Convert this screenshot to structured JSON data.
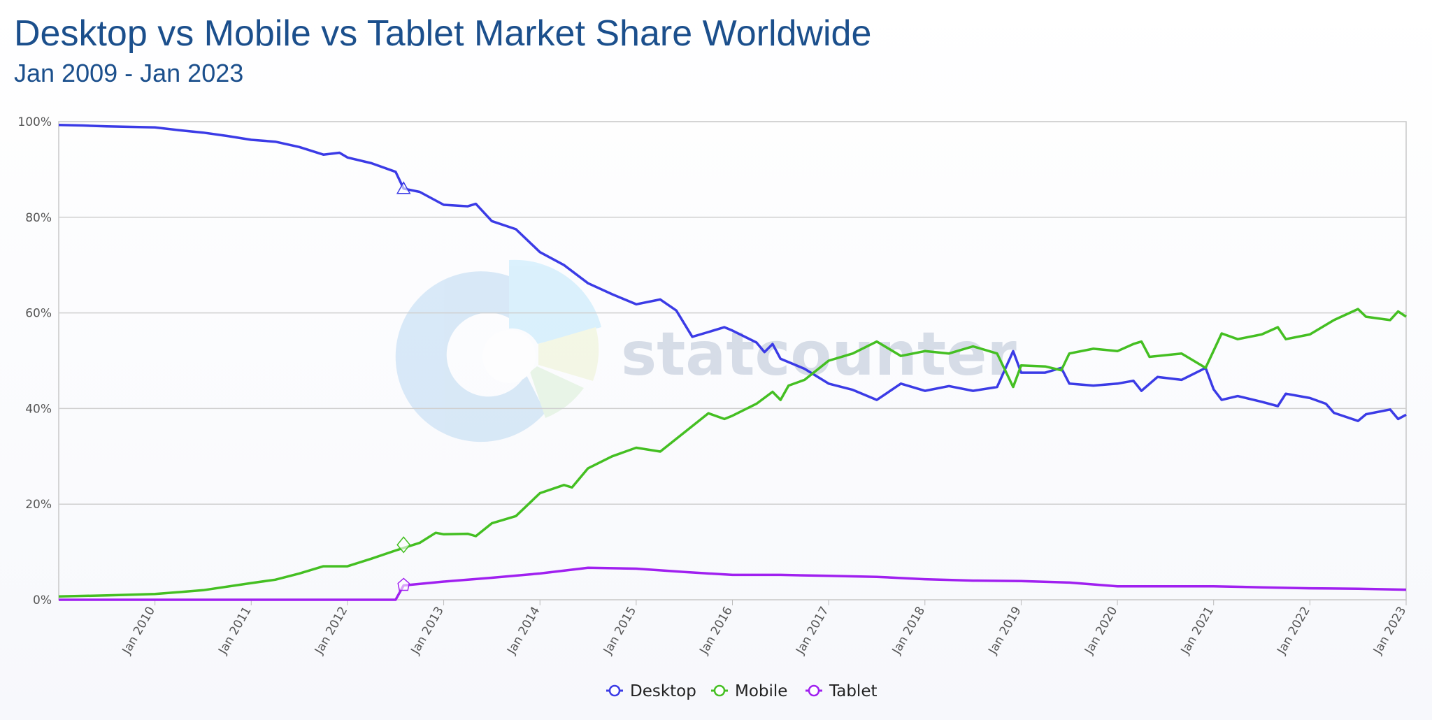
{
  "title": "Desktop vs Mobile vs Tablet Market Share Worldwide",
  "subtitle": "Jan 2009 - Jan 2023",
  "chart_data": {
    "type": "line",
    "title": "Desktop vs Mobile vs Tablet Market Share Worldwide",
    "subtitle": "Jan 2009 - Jan 2023",
    "xlabel": "",
    "ylabel": "",
    "xlim": [
      "2009-01",
      "2023-01"
    ],
    "ylim": [
      0,
      100
    ],
    "y_ticks": [
      "0%",
      "20%",
      "40%",
      "60%",
      "80%",
      "100%"
    ],
    "x_ticks": [
      "Jan 2010",
      "Jan 2011",
      "Jan 2012",
      "Jan 2013",
      "Jan 2014",
      "Jan 2015",
      "Jan 2016",
      "Jan 2017",
      "Jan 2018",
      "Jan 2019",
      "Jan 2020",
      "Jan 2021",
      "Jan 2022",
      "Jan 2023"
    ],
    "grid": true,
    "legend": "bottom-center",
    "watermark": "statcounter",
    "series": [
      {
        "name": "Desktop",
        "color": "#3b3be6",
        "points": [
          [
            "2009-01",
            99.3
          ],
          [
            "2009-04",
            99.2
          ],
          [
            "2009-07",
            99.0
          ],
          [
            "2009-10",
            98.9
          ],
          [
            "2010-01",
            98.8
          ],
          [
            "2010-04",
            98.2
          ],
          [
            "2010-07",
            97.7
          ],
          [
            "2010-10",
            97.0
          ],
          [
            "2011-01",
            96.2
          ],
          [
            "2011-04",
            95.8
          ],
          [
            "2011-07",
            94.7
          ],
          [
            "2011-10",
            93.1
          ],
          [
            "2011-12",
            93.5
          ],
          [
            "2012-01",
            92.5
          ],
          [
            "2012-04",
            91.3
          ],
          [
            "2012-07",
            89.5
          ],
          [
            "2012-08",
            86.0
          ],
          [
            "2012-10",
            85.3
          ],
          [
            "2013-01",
            82.6
          ],
          [
            "2013-04",
            82.3
          ],
          [
            "2013-05",
            82.8
          ],
          [
            "2013-07",
            79.2
          ],
          [
            "2013-10",
            77.5
          ],
          [
            "2014-01",
            72.7
          ],
          [
            "2014-04",
            70.0
          ],
          [
            "2014-07",
            66.2
          ],
          [
            "2014-10",
            63.9
          ],
          [
            "2015-01",
            61.8
          ],
          [
            "2015-04",
            62.8
          ],
          [
            "2015-06",
            60.5
          ],
          [
            "2015-08",
            55.0
          ],
          [
            "2015-10",
            56.0
          ],
          [
            "2015-12",
            57.0
          ],
          [
            "2016-01",
            56.3
          ],
          [
            "2016-04",
            53.8
          ],
          [
            "2016-05",
            51.8
          ],
          [
            "2016-06",
            53.5
          ],
          [
            "2016-07",
            50.4
          ],
          [
            "2016-10",
            48.3
          ],
          [
            "2017-01",
            45.2
          ],
          [
            "2017-04",
            43.9
          ],
          [
            "2017-07",
            41.8
          ],
          [
            "2017-10",
            45.2
          ],
          [
            "2018-01",
            43.7
          ],
          [
            "2018-04",
            44.7
          ],
          [
            "2018-07",
            43.7
          ],
          [
            "2018-10",
            44.5
          ],
          [
            "2018-12",
            52.0
          ],
          [
            "2019-01",
            47.5
          ],
          [
            "2019-04",
            47.5
          ],
          [
            "2019-06",
            48.5
          ],
          [
            "2019-07",
            45.2
          ],
          [
            "2019-10",
            44.8
          ],
          [
            "2020-01",
            45.2
          ],
          [
            "2020-03",
            45.8
          ],
          [
            "2020-04",
            43.7
          ],
          [
            "2020-06",
            46.6
          ],
          [
            "2020-09",
            46.0
          ],
          [
            "2020-12",
            48.5
          ],
          [
            "2021-01",
            44.0
          ],
          [
            "2021-02",
            41.8
          ],
          [
            "2021-04",
            42.6
          ],
          [
            "2021-07",
            41.4
          ],
          [
            "2021-09",
            40.5
          ],
          [
            "2021-10",
            43.1
          ],
          [
            "2022-01",
            42.2
          ],
          [
            "2022-03",
            41.0
          ],
          [
            "2022-04",
            39.1
          ],
          [
            "2022-07",
            37.4
          ],
          [
            "2022-08",
            38.8
          ],
          [
            "2022-11",
            39.8
          ],
          [
            "2022-12",
            37.8
          ],
          [
            "2023-01",
            38.7
          ]
        ]
      },
      {
        "name": "Mobile",
        "color": "#44bf22",
        "points": [
          [
            "2009-01",
            0.7
          ],
          [
            "2009-07",
            0.9
          ],
          [
            "2010-01",
            1.2
          ],
          [
            "2010-07",
            2.0
          ],
          [
            "2011-01",
            3.5
          ],
          [
            "2011-04",
            4.2
          ],
          [
            "2011-07",
            5.5
          ],
          [
            "2011-10",
            7.0
          ],
          [
            "2012-01",
            7.0
          ],
          [
            "2012-04",
            8.6
          ],
          [
            "2012-07",
            10.3
          ],
          [
            "2012-10",
            11.9
          ],
          [
            "2012-12",
            14.0
          ],
          [
            "2013-01",
            13.7
          ],
          [
            "2013-04",
            13.8
          ],
          [
            "2013-05",
            13.3
          ],
          [
            "2013-07",
            16.0
          ],
          [
            "2013-10",
            17.5
          ],
          [
            "2014-01",
            22.3
          ],
          [
            "2014-04",
            24.0
          ],
          [
            "2014-05",
            23.5
          ],
          [
            "2014-07",
            27.5
          ],
          [
            "2014-10",
            30.0
          ],
          [
            "2015-01",
            31.8
          ],
          [
            "2015-04",
            31.0
          ],
          [
            "2015-07",
            35.0
          ],
          [
            "2015-10",
            39.0
          ],
          [
            "2015-12",
            37.8
          ],
          [
            "2016-01",
            38.5
          ],
          [
            "2016-04",
            41.0
          ],
          [
            "2016-06",
            43.5
          ],
          [
            "2016-07",
            41.8
          ],
          [
            "2016-08",
            44.8
          ],
          [
            "2016-10",
            46.0
          ],
          [
            "2017-01",
            50.0
          ],
          [
            "2017-04",
            51.5
          ],
          [
            "2017-07",
            54.0
          ],
          [
            "2017-10",
            51.0
          ],
          [
            "2018-01",
            52.0
          ],
          [
            "2018-04",
            51.5
          ],
          [
            "2018-07",
            53.0
          ],
          [
            "2018-10",
            51.5
          ],
          [
            "2018-12",
            44.5
          ],
          [
            "2019-01",
            49.0
          ],
          [
            "2019-04",
            48.8
          ],
          [
            "2019-06",
            48.0
          ],
          [
            "2019-07",
            51.5
          ],
          [
            "2019-10",
            52.5
          ],
          [
            "2020-01",
            52.0
          ],
          [
            "2020-03",
            53.5
          ],
          [
            "2020-04",
            54.0
          ],
          [
            "2020-05",
            50.8
          ],
          [
            "2020-09",
            51.5
          ],
          [
            "2020-12",
            48.5
          ],
          [
            "2021-02",
            55.7
          ],
          [
            "2021-04",
            54.5
          ],
          [
            "2021-07",
            55.5
          ],
          [
            "2021-09",
            57.0
          ],
          [
            "2021-10",
            54.5
          ],
          [
            "2022-01",
            55.5
          ],
          [
            "2022-04",
            58.5
          ],
          [
            "2022-07",
            60.8
          ],
          [
            "2022-08",
            59.2
          ],
          [
            "2022-11",
            58.5
          ],
          [
            "2022-12",
            60.3
          ],
          [
            "2023-01",
            59.2
          ]
        ]
      },
      {
        "name": "Tablet",
        "color": "#a020f0",
        "points": [
          [
            "2009-01",
            0.0
          ],
          [
            "2012-07",
            0.0
          ],
          [
            "2012-08",
            3.0
          ],
          [
            "2013-01",
            3.8
          ],
          [
            "2013-07",
            4.6
          ],
          [
            "2014-01",
            5.5
          ],
          [
            "2014-07",
            6.7
          ],
          [
            "2015-01",
            6.5
          ],
          [
            "2015-07",
            5.8
          ],
          [
            "2016-01",
            5.2
          ],
          [
            "2016-07",
            5.2
          ],
          [
            "2017-01",
            5.0
          ],
          [
            "2017-07",
            4.8
          ],
          [
            "2018-01",
            4.3
          ],
          [
            "2018-07",
            4.0
          ],
          [
            "2019-01",
            3.9
          ],
          [
            "2019-07",
            3.6
          ],
          [
            "2020-01",
            2.8
          ],
          [
            "2020-07",
            2.8
          ],
          [
            "2021-01",
            2.8
          ],
          [
            "2021-07",
            2.6
          ],
          [
            "2022-01",
            2.4
          ],
          [
            "2022-07",
            2.3
          ],
          [
            "2023-01",
            2.1
          ]
        ]
      }
    ],
    "highlight_date": "2012-08"
  }
}
